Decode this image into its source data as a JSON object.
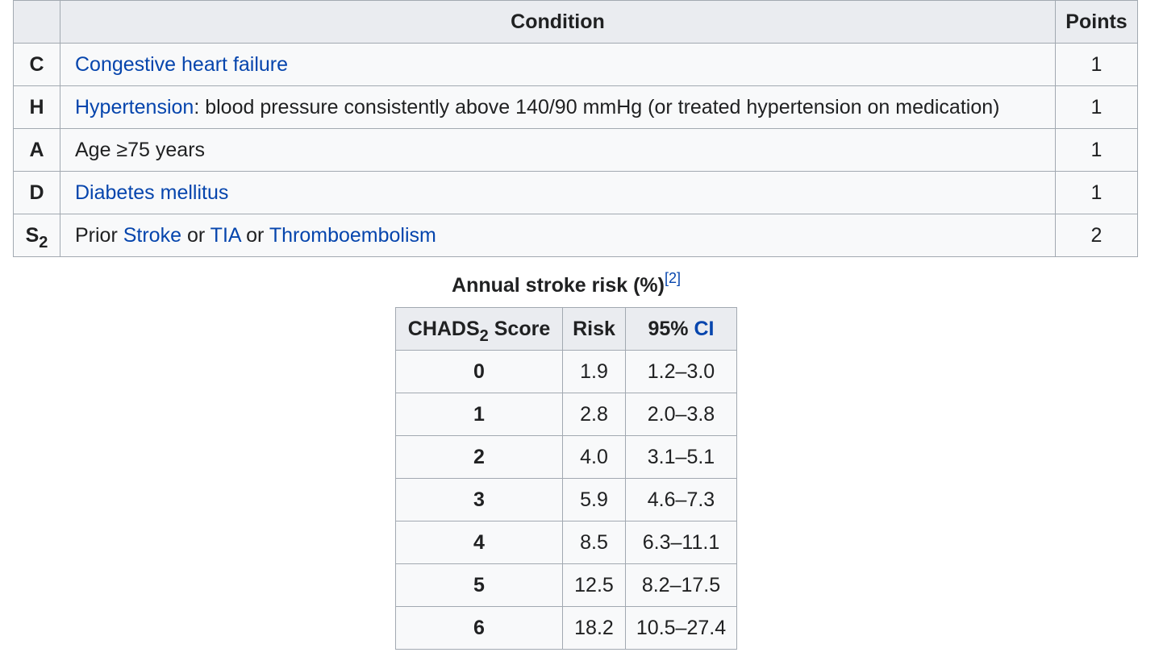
{
  "criteria_table": {
    "header": {
      "letter": "",
      "condition": "Condition",
      "points": "Points"
    },
    "rows": [
      {
        "letter": "C",
        "parts": [
          {
            "text": "Congestive heart failure",
            "link": true
          }
        ],
        "points": "1"
      },
      {
        "letter": "H",
        "parts": [
          {
            "text": "Hypertension",
            "link": true
          },
          {
            "text": ": blood pressure consistently above 140/90 mmHg (or treated hypertension on medication)",
            "link": false
          }
        ],
        "points": "1"
      },
      {
        "letter": "A",
        "parts": [
          {
            "text": "Age ≥75 years",
            "link": false
          }
        ],
        "points": "1"
      },
      {
        "letter": "D",
        "parts": [
          {
            "text": "Diabetes mellitus",
            "link": true
          }
        ],
        "points": "1"
      },
      {
        "letter": "S",
        "letter_sub": "2",
        "parts": [
          {
            "text": "Prior ",
            "link": false
          },
          {
            "text": "Stroke",
            "link": true
          },
          {
            "text": " or ",
            "link": false
          },
          {
            "text": "TIA",
            "link": true
          },
          {
            "text": " or ",
            "link": false
          },
          {
            "text": "Thromboembolism",
            "link": true
          }
        ],
        "points": "2"
      }
    ]
  },
  "risk_table": {
    "caption": "Annual stroke risk (%)",
    "caption_ref": "[2]",
    "header": {
      "score_pre": "CHADS",
      "score_sub": "2",
      "score_post": " Score",
      "risk": "Risk",
      "ci_pre": "95% ",
      "ci_link": "CI"
    },
    "rows": [
      {
        "score": "0",
        "risk": "1.9",
        "ci": "1.2–3.0"
      },
      {
        "score": "1",
        "risk": "2.8",
        "ci": "2.0–3.8"
      },
      {
        "score": "2",
        "risk": "4.0",
        "ci": "3.1–5.1"
      },
      {
        "score": "3",
        "risk": "5.9",
        "ci": "4.6–7.3"
      },
      {
        "score": "4",
        "risk": "8.5",
        "ci": "6.3–11.1"
      },
      {
        "score": "5",
        "risk": "12.5",
        "ci": "8.2–17.5"
      },
      {
        "score": "6",
        "risk": "18.2",
        "ci": "10.5–27.4"
      }
    ]
  },
  "colors": {
    "link": "#0645ad",
    "header_bg": "#eaecf0",
    "cell_bg": "#f8f9fa",
    "border": "#a2a9b1",
    "text": "#202122"
  }
}
